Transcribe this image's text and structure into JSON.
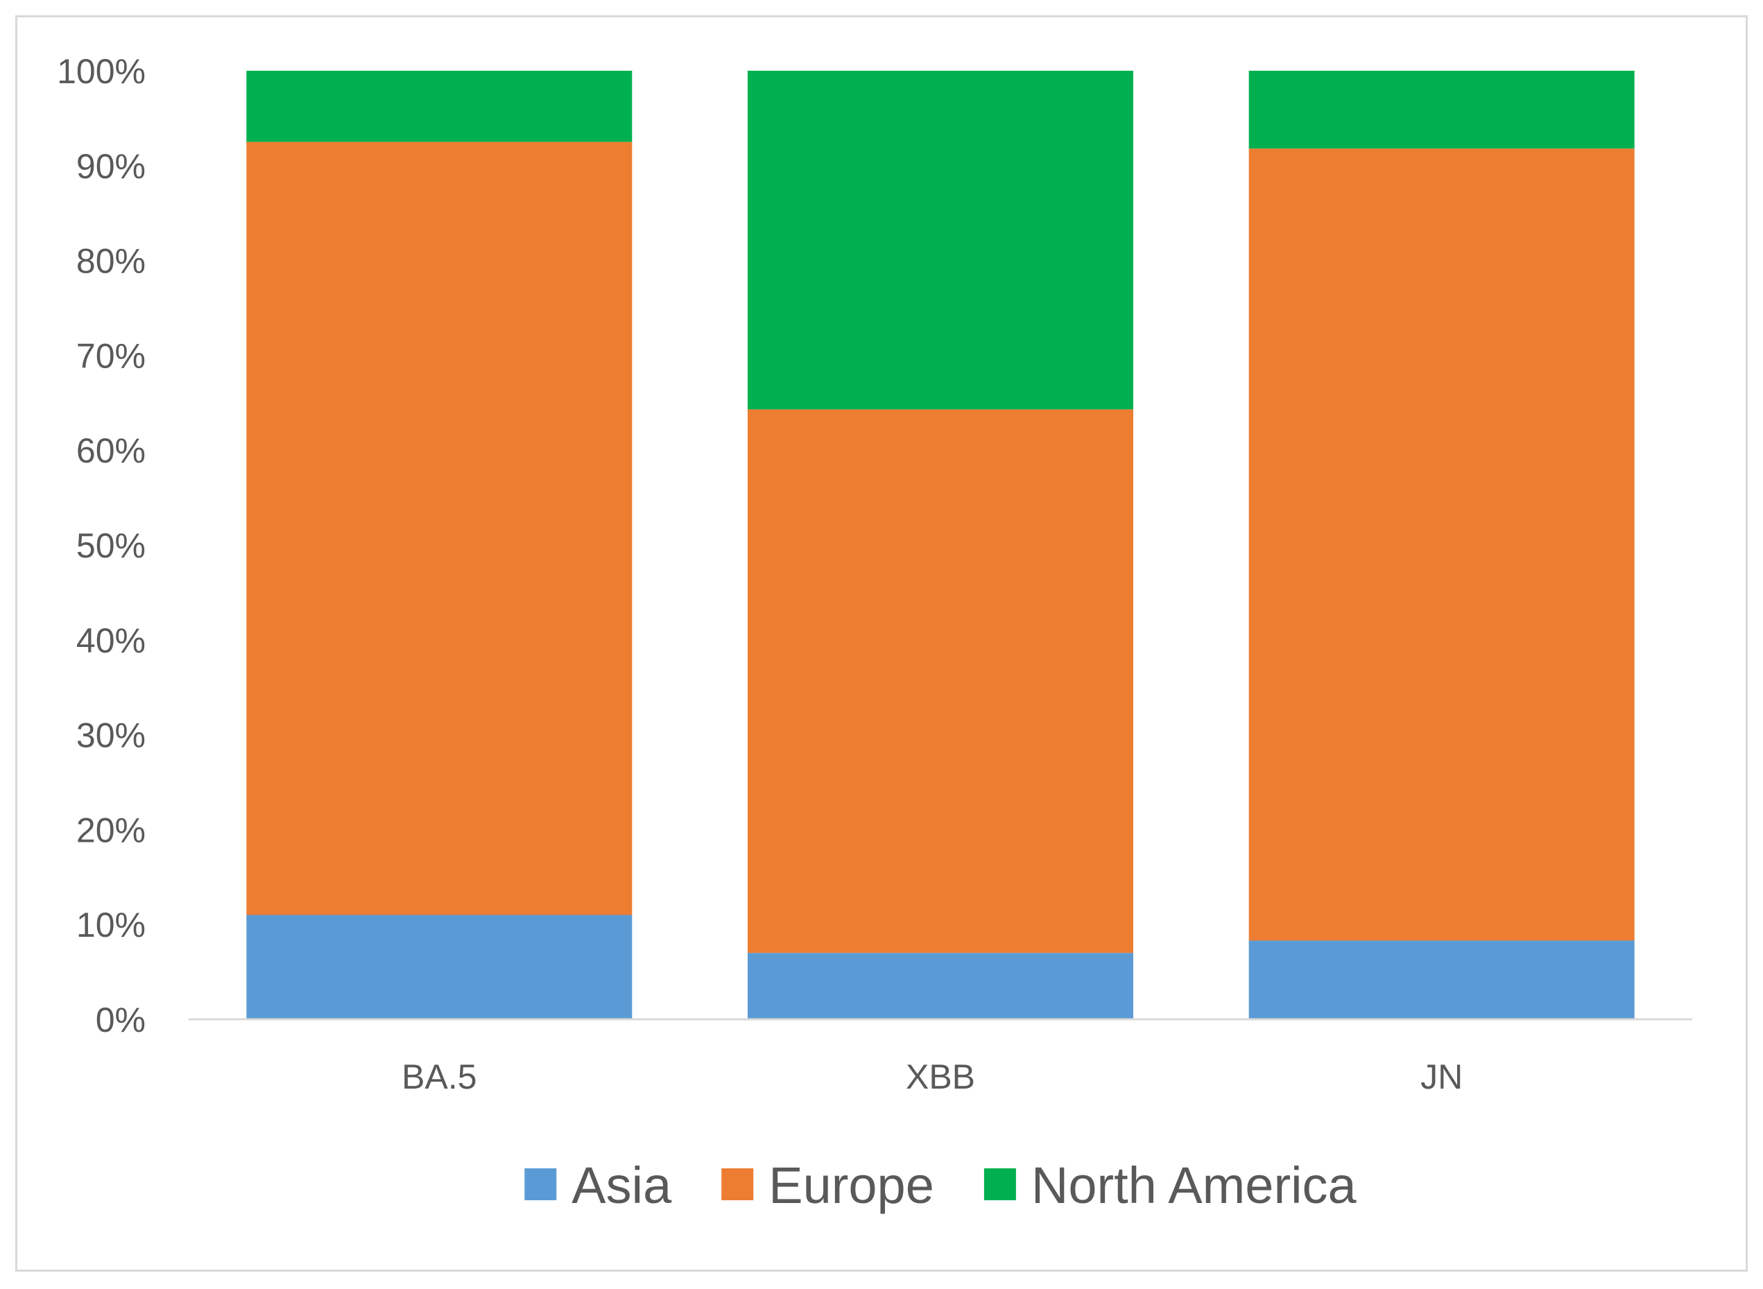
{
  "chart_data": {
    "type": "bar",
    "stacked": true,
    "normalized": true,
    "categories": [
      "BA.5",
      "XBB",
      "JN"
    ],
    "series": [
      {
        "name": "Asia",
        "color": "#5b9bd5",
        "values": [
          11,
          7,
          8.3
        ]
      },
      {
        "name": "Europe",
        "color": "#ed7d31",
        "values": [
          81.5,
          57.3,
          83.5
        ]
      },
      {
        "name": "North America",
        "color": "#00b050",
        "values": [
          7.5,
          35.7,
          8.2
        ]
      }
    ],
    "title": "",
    "xlabel": "",
    "ylabel": "",
    "ylim": [
      0,
      100
    ],
    "yticks": [
      "0%",
      "10%",
      "20%",
      "30%",
      "40%",
      "50%",
      "60%",
      "70%",
      "80%",
      "90%",
      "100%"
    ],
    "grid": false,
    "legend_position": "bottom",
    "axis_color": "#d9d9d9",
    "text_color": "#595959"
  }
}
